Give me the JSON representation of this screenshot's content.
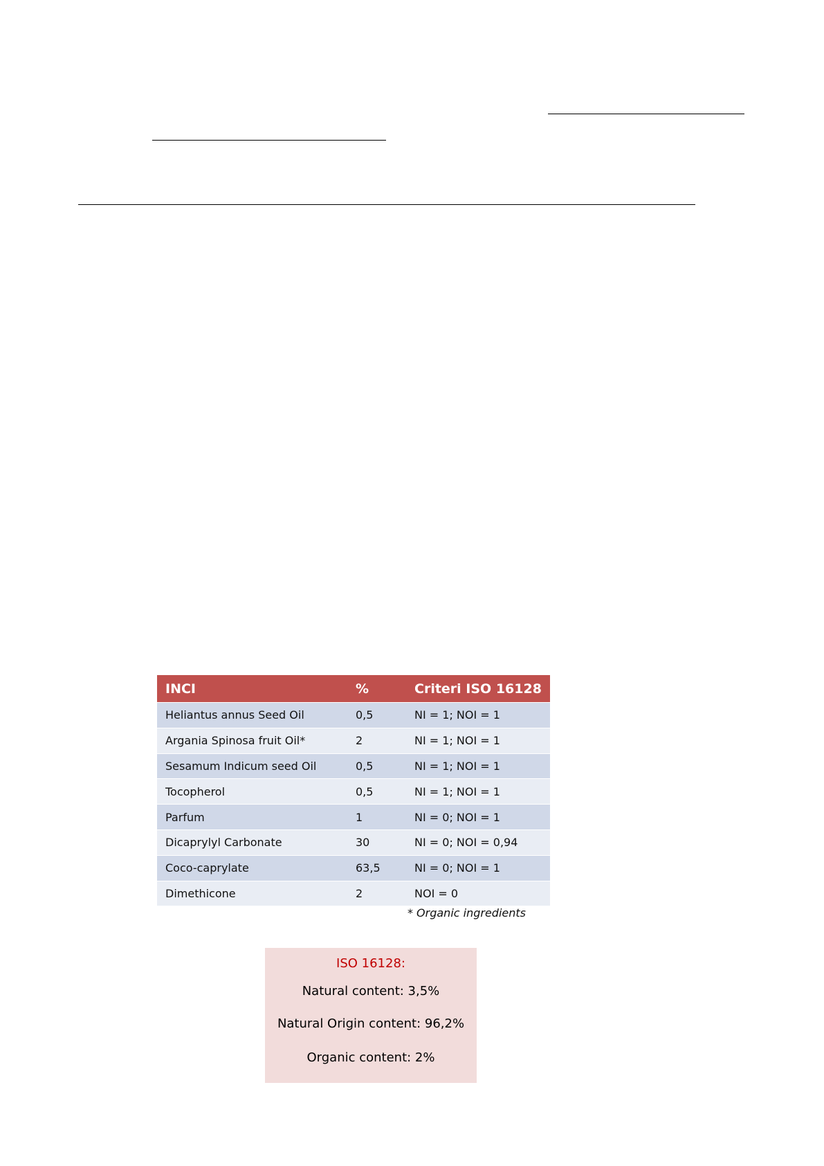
{
  "table": {
    "headers": [
      "INCI",
      "%",
      "Criteri ISO 16128"
    ],
    "rows": [
      [
        "Heliantus annus Seed Oil",
        "0,5",
        "NI = 1; NOI = 1"
      ],
      [
        "Argania Spinosa fruit Oil*",
        "2",
        "NI = 1; NOI = 1"
      ],
      [
        "Sesamum Indicum seed Oil",
        "0,5",
        "NI = 1; NOI = 1"
      ],
      [
        "Tocopherol",
        "0,5",
        "NI = 1; NOI = 1"
      ],
      [
        "Parfum",
        "1",
        "NI = 0; NOI = 1"
      ],
      [
        "Dicaprylyl Carbonate",
        "30",
        "NI = 0; NOI = 0,94"
      ],
      [
        "Coco-caprylate",
        "63,5",
        "NI = 0; NOI = 1"
      ],
      [
        "Dimethicone",
        "2",
        "NOI = 0"
      ]
    ],
    "footnote": "* Organic ingredients",
    "header_color": "#c0504d"
  },
  "summary": {
    "title": "ISO 16128:",
    "natural": "Natural content: 3,5%",
    "natural_origin": "Natural Origin content: 96,2%",
    "organic": "Organic content: 2%",
    "title_color": "#c00000",
    "background": "#f2dcdb"
  }
}
